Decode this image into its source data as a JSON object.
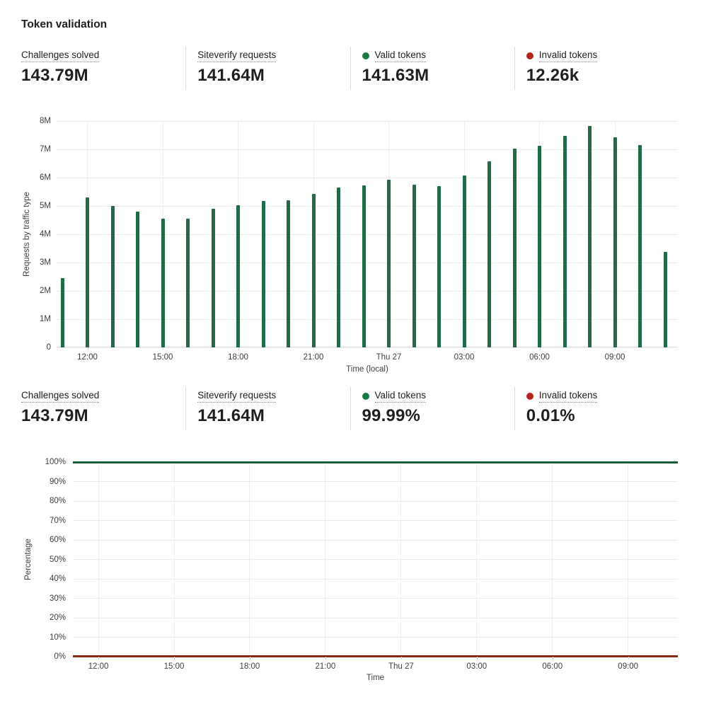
{
  "title": "Token validation",
  "colors": {
    "bar_green": "#226b46",
    "dot_green": "#1a7a44",
    "dot_red": "#b3241c",
    "line_green": "#175d38",
    "line_red": "#8c2812",
    "grid": "#e9ebee",
    "axis": "#dadce0",
    "tick_text": "#3c4043",
    "value_text": "#1f1f1f"
  },
  "stats_top": {
    "cards": [
      {
        "label": "Challenges solved",
        "value": "143.79M",
        "dot": null
      },
      {
        "label": "Siteverify requests",
        "value": "141.64M",
        "dot": null
      },
      {
        "label": "Valid tokens",
        "value": "141.63M",
        "dot": "green"
      },
      {
        "label": "Invalid tokens",
        "value": "12.26k",
        "dot": "red"
      }
    ]
  },
  "stats_bottom": {
    "cards": [
      {
        "label": "Challenges solved",
        "value": "143.79M",
        "dot": null
      },
      {
        "label": "Siteverify requests",
        "value": "141.64M",
        "dot": null
      },
      {
        "label": "Valid tokens",
        "value": "99.99%",
        "dot": "green"
      },
      {
        "label": "Invalid tokens",
        "value": "0.01%",
        "dot": "red"
      }
    ]
  },
  "chart_data": [
    {
      "type": "bar",
      "name": "requests-by-traffic-type",
      "title": "",
      "ylabel": "Requests by traffic type",
      "xlabel": "Time (local)",
      "ylim_millions": [
        0,
        8
      ],
      "ytick_labels": [
        "0",
        "1M",
        "2M",
        "3M",
        "4M",
        "5M",
        "6M",
        "7M",
        "8M"
      ],
      "grid": true,
      "legend": "none",
      "series_name": "Valid tokens",
      "bar_color_key": "bar_green",
      "x_hours": [
        "11:00",
        "12:00",
        "13:00",
        "14:00",
        "15:00",
        "16:00",
        "17:00",
        "18:00",
        "19:00",
        "20:00",
        "21:00",
        "22:00",
        "23:00",
        "Thu 27 00:00",
        "01:00",
        "02:00",
        "03:00",
        "04:00",
        "05:00",
        "06:00",
        "07:00",
        "08:00",
        "09:00",
        "10:00",
        "11:00"
      ],
      "values_millions": [
        2.45,
        5.3,
        5.0,
        4.8,
        4.55,
        4.55,
        4.9,
        5.02,
        5.17,
        5.2,
        5.42,
        5.65,
        5.72,
        5.92,
        5.76,
        5.7,
        6.08,
        6.58,
        7.02,
        7.12,
        7.48,
        7.82,
        7.42,
        7.15,
        3.38
      ],
      "xticks": [
        {
          "index": 1,
          "label": "12:00"
        },
        {
          "index": 4,
          "label": "15:00"
        },
        {
          "index": 7,
          "label": "18:00"
        },
        {
          "index": 10,
          "label": "21:00"
        },
        {
          "index": 13,
          "label": "Thu 27"
        },
        {
          "index": 16,
          "label": "03:00"
        },
        {
          "index": 19,
          "label": "06:00"
        },
        {
          "index": 22,
          "label": "09:00"
        }
      ]
    },
    {
      "type": "line",
      "name": "token-validation-percentage",
      "title": "",
      "ylabel": "Percentage",
      "xlabel": "Time",
      "ylim_pct": [
        0,
        100
      ],
      "ytick_labels": [
        "0%",
        "10%",
        "20%",
        "30%",
        "40%",
        "50%",
        "60%",
        "70%",
        "80%",
        "90%",
        "100%"
      ],
      "grid": true,
      "legend": "none",
      "series": [
        {
          "name": "Valid tokens",
          "constant_pct": 99.99,
          "color_key": "line_green"
        },
        {
          "name": "Invalid tokens",
          "constant_pct": 0.01,
          "color_key": "line_red"
        }
      ],
      "xticks": [
        {
          "hour_offset": 1,
          "label": "12:00"
        },
        {
          "hour_offset": 4,
          "label": "15:00"
        },
        {
          "hour_offset": 7,
          "label": "18:00"
        },
        {
          "hour_offset": 10,
          "label": "21:00"
        },
        {
          "hour_offset": 13,
          "label": "Thu 27"
        },
        {
          "hour_offset": 16,
          "label": "03:00"
        },
        {
          "hour_offset": 19,
          "label": "06:00"
        },
        {
          "hour_offset": 22,
          "label": "09:00"
        }
      ]
    }
  ]
}
